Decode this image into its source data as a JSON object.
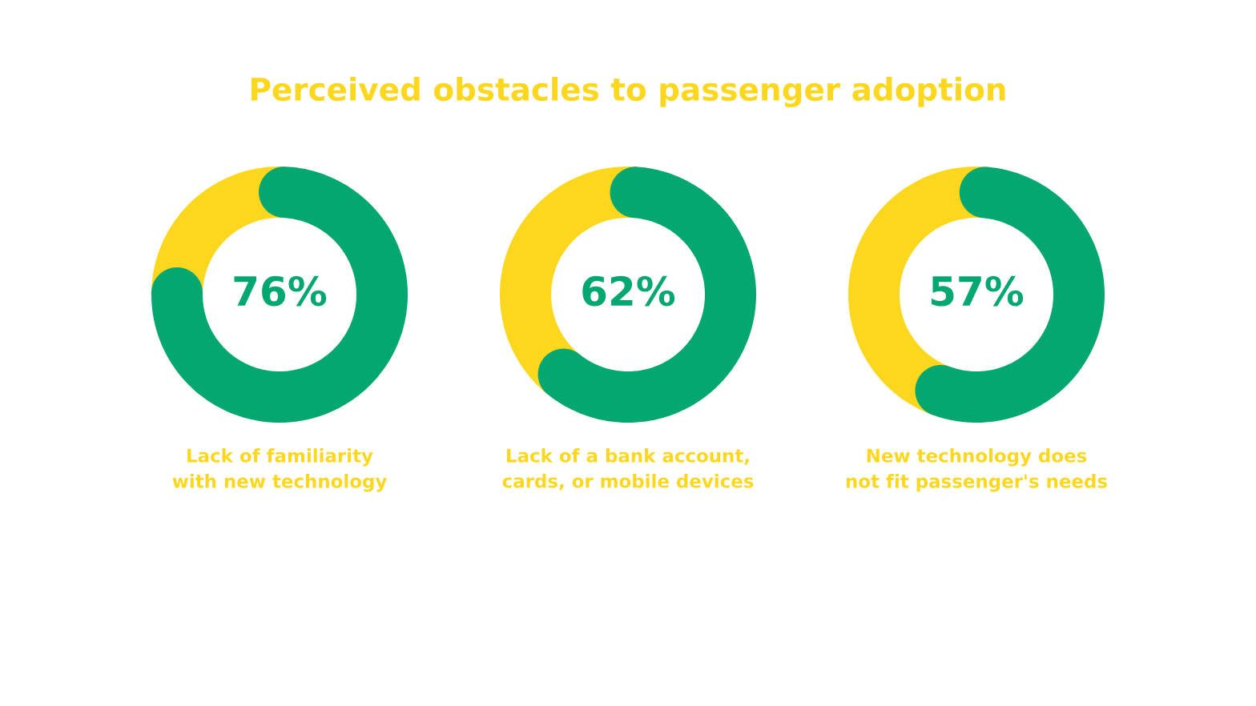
{
  "chart_data": [
    {
      "type": "other",
      "title": "Perceived obstacles to passenger adoption"
    },
    {
      "type": "donut",
      "categories": [
        null,
        null
      ],
      "values": [
        76,
        24
      ],
      "colors": [
        "#04a76f",
        "#fdd61e"
      ],
      "value_labels": [
        "76%",
        null
      ],
      "xlabel": "Lack of familiarity\nwith new technology"
    },
    {
      "type": "donut",
      "categories": [
        null,
        null
      ],
      "values": [
        62,
        38
      ],
      "colors": [
        "#04a76f",
        "#fdd61e"
      ],
      "value_labels": [
        "62%",
        null
      ],
      "xlabel": "Lack of a bank account,\ncards, or mobile devices"
    },
    {
      "type": "donut",
      "categories": [
        null,
        null
      ],
      "values": [
        57,
        43
      ],
      "colors": [
        "#04a76f",
        "#fdd61e"
      ],
      "value_labels": [
        "57%",
        null
      ],
      "xlabel": "New technology does\nnot fit passenger's needs"
    }
  ]
}
